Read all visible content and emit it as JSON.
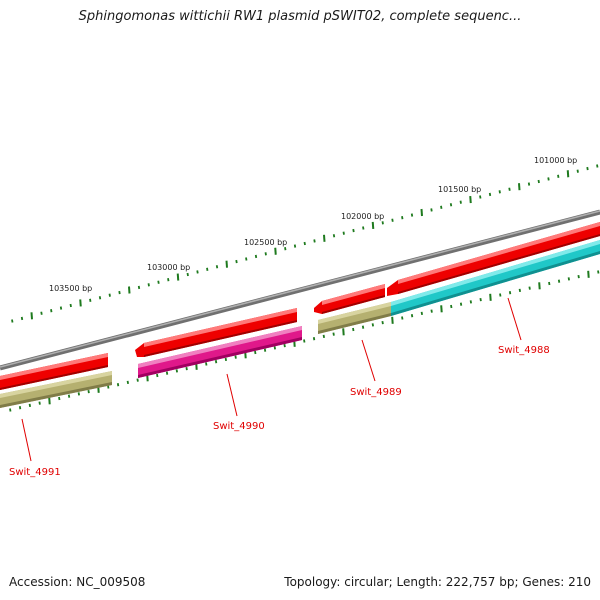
{
  "title": "Sphingomonas wittichii RW1 plasmid pSWIT02, complete sequenc...",
  "footer": {
    "accession": "Accession: NC_009508",
    "summary": "Topology: circular; Length: 222,757 bp; Genes: 210"
  },
  "scale_labels": [
    "101000 bp",
    "101500 bp",
    "102000 bp",
    "102500 bp",
    "103000 bp",
    "103500 bp"
  ],
  "genes": [
    {
      "name": "Swit_4988",
      "strand": "reverse"
    },
    {
      "name": "Swit_4989",
      "strand": "reverse"
    },
    {
      "name": "Swit_4990",
      "strand": "reverse"
    },
    {
      "name": "Swit_4991",
      "strand": "reverse"
    }
  ],
  "colors": {
    "backbone": "#888888",
    "cds": "#ee0000",
    "tick": "#1e7a1e",
    "label": "#e00000",
    "feature_olive": "#b5b070",
    "feature_magenta": "#e0188a",
    "feature_cyan": "#20c8c8"
  }
}
